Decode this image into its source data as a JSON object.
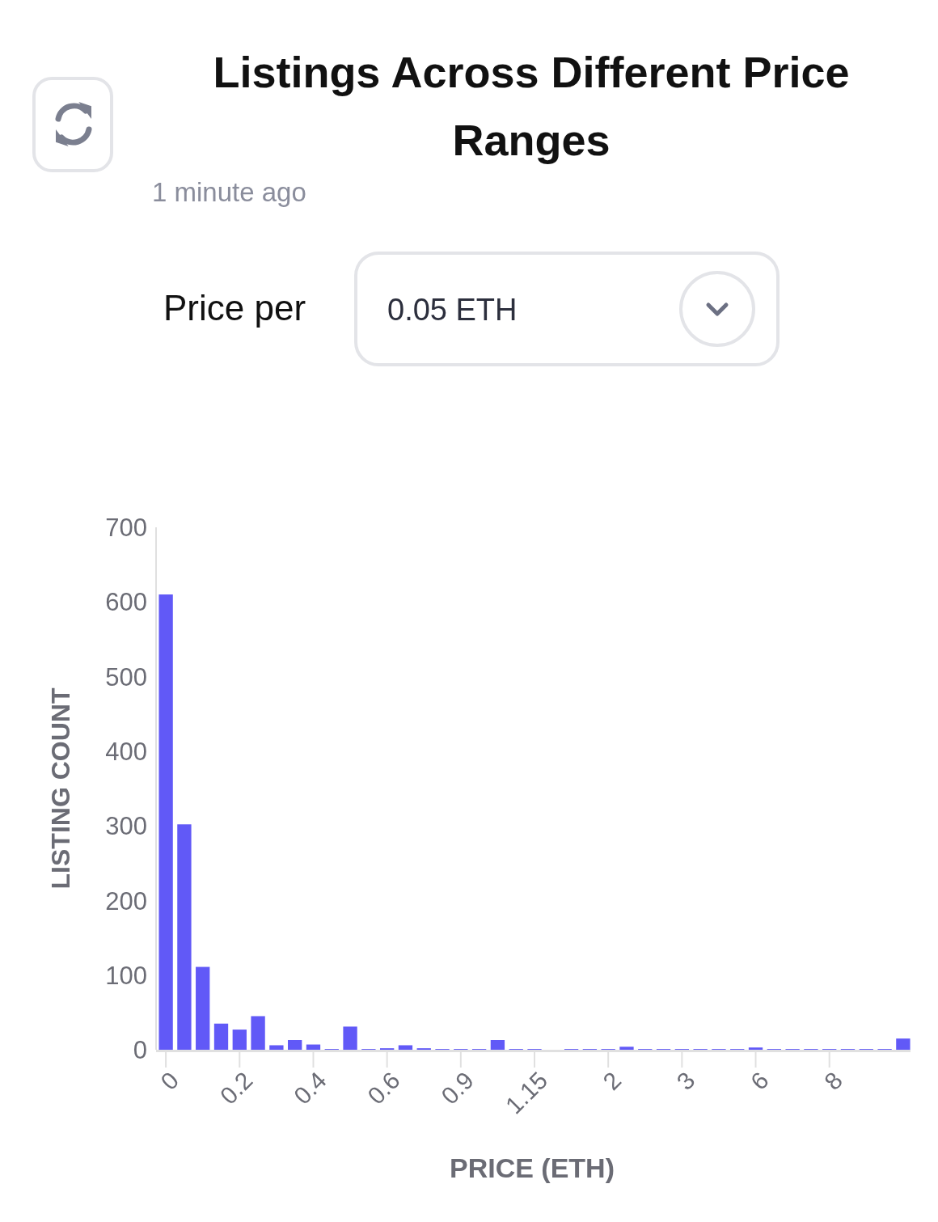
{
  "chart_data": {
    "type": "bar",
    "title": "Listings Across Different Price Ranges",
    "subtitle": "1 minute ago",
    "annotations": [
      "Price per",
      "0.05 ETH"
    ],
    "xlabel": "PRICE (ETH)",
    "ylabel": "LISTING COUNT",
    "categories": [
      "0",
      null,
      null,
      null,
      "0.2",
      null,
      null,
      null,
      "0.4",
      null,
      null,
      null,
      "0.6",
      null,
      null,
      null,
      "0.9",
      null,
      null,
      null,
      "1.15",
      null,
      null,
      null,
      "2",
      null,
      null,
      null,
      "3",
      null,
      null,
      null,
      "6",
      null,
      null,
      null,
      "8",
      null,
      null,
      null,
      null
    ],
    "values": [
      610,
      302,
      111,
      35,
      27,
      45,
      6,
      13,
      7,
      1,
      31,
      1,
      2,
      6,
      2,
      1,
      1,
      1,
      13,
      1,
      1,
      0,
      1,
      1,
      1,
      4,
      1,
      1,
      1,
      1,
      1,
      1,
      3,
      1,
      1,
      1,
      1,
      1,
      1,
      1,
      15
    ],
    "color": "#6159f7",
    "ylim": [
      0,
      700
    ],
    "yticks": [
      0,
      100,
      200,
      300,
      400,
      500,
      600,
      700
    ],
    "grid": false
  }
}
